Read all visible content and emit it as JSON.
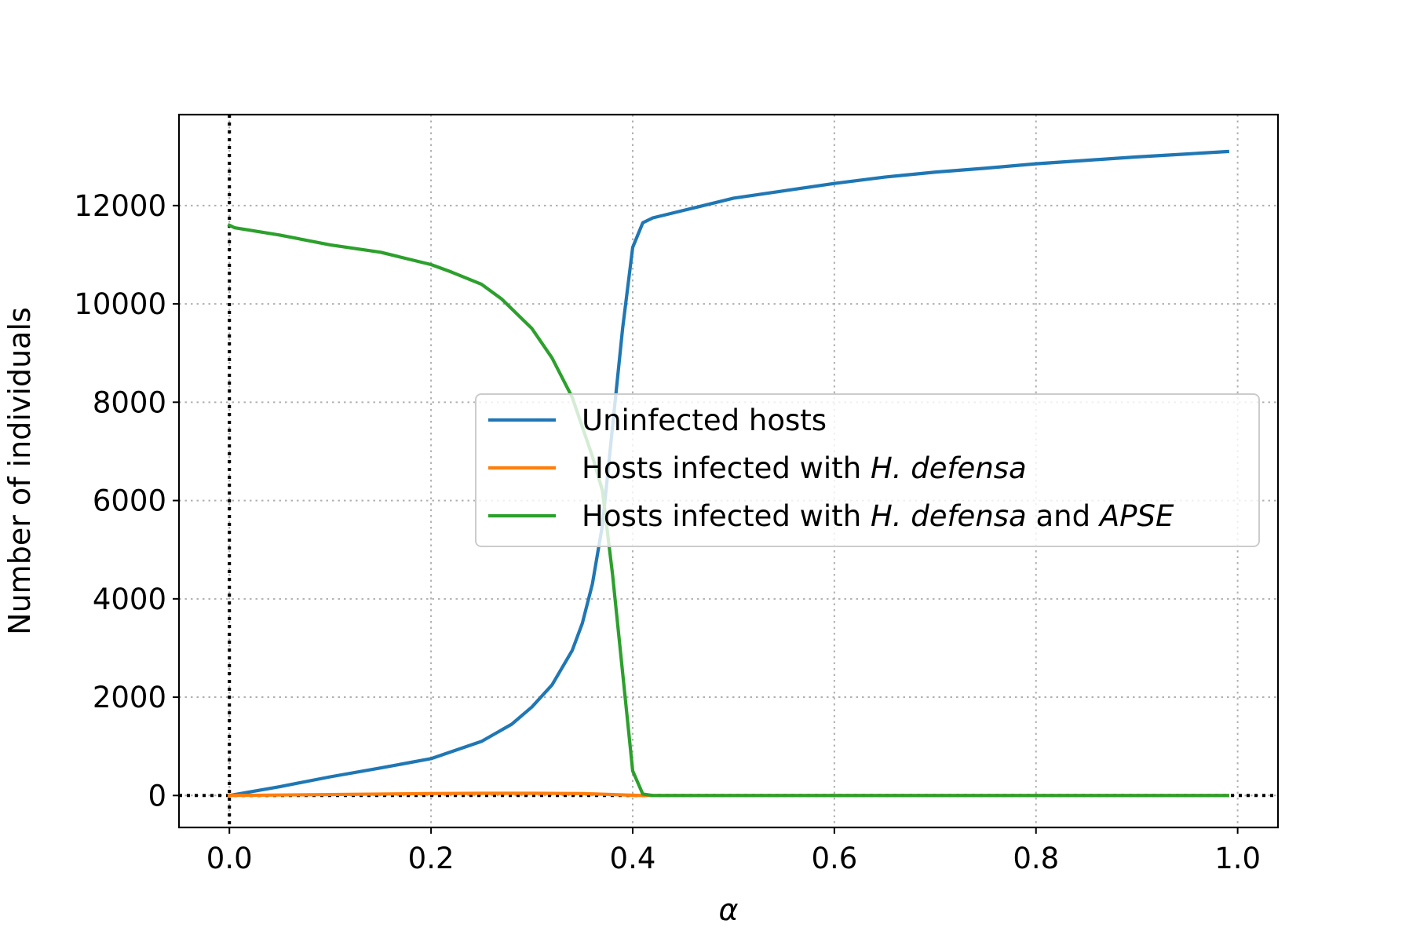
{
  "chart_data": {
    "type": "line",
    "xlabel": "α",
    "ylabel": "Number of individuals",
    "xlim": [
      -0.05,
      1.04
    ],
    "ylim": [
      -650,
      13850
    ],
    "x_ticks": [
      0.0,
      0.2,
      0.4,
      0.6,
      0.8,
      1.0
    ],
    "x_tick_labels": [
      "0.0",
      "0.2",
      "0.4",
      "0.6",
      "0.8",
      "1.0"
    ],
    "y_ticks": [
      0,
      2000,
      4000,
      6000,
      8000,
      10000,
      12000
    ],
    "y_tick_labels": [
      "0",
      "2000",
      "4000",
      "6000",
      "8000",
      "10000",
      "12000"
    ],
    "grid": true,
    "reference_lines": {
      "x0_dotted": true,
      "y0_dotted": true
    },
    "legend_position": "center-right",
    "legend": [
      {
        "parts": [
          {
            "text": "Uninfected hosts",
            "italic": false
          }
        ]
      },
      {
        "parts": [
          {
            "text": "Hosts infected with ",
            "italic": false
          },
          {
            "text": "H. defensa",
            "italic": true
          }
        ]
      },
      {
        "parts": [
          {
            "text": "Hosts infected with ",
            "italic": false
          },
          {
            "text": "H. defensa",
            "italic": true
          },
          {
            "text": " and ",
            "italic": false
          },
          {
            "text": "APSE",
            "italic": true
          }
        ]
      }
    ],
    "series": [
      {
        "name": "Uninfected hosts",
        "color": "#1f77b4",
        "x": [
          0.0,
          0.05,
          0.1,
          0.15,
          0.2,
          0.25,
          0.28,
          0.3,
          0.32,
          0.34,
          0.35,
          0.36,
          0.37,
          0.38,
          0.39,
          0.4,
          0.41,
          0.42,
          0.45,
          0.5,
          0.55,
          0.6,
          0.65,
          0.7,
          0.75,
          0.8,
          0.85,
          0.9,
          0.95,
          0.99
        ],
        "y": [
          0,
          180,
          380,
          560,
          750,
          1100,
          1450,
          1800,
          2250,
          2950,
          3500,
          4300,
          5500,
          7500,
          9500,
          11150,
          11650,
          11750,
          11900,
          12150,
          12300,
          12450,
          12580,
          12680,
          12760,
          12850,
          12920,
          12990,
          13050,
          13100
        ]
      },
      {
        "name": "Hosts infected with H. defensa",
        "color": "#ff7f0e",
        "x": [
          0.0,
          0.1,
          0.2,
          0.25,
          0.3,
          0.35,
          0.38,
          0.4,
          0.41,
          0.5,
          0.6,
          0.7,
          0.8,
          0.9,
          0.99
        ],
        "y": [
          0,
          20,
          40,
          45,
          45,
          40,
          20,
          5,
          0,
          0,
          0,
          0,
          0,
          0,
          0
        ]
      },
      {
        "name": "Hosts infected with H. defensa and APSE",
        "color": "#2ca02c",
        "x": [
          0.0,
          0.005,
          0.05,
          0.1,
          0.15,
          0.2,
          0.22,
          0.25,
          0.27,
          0.3,
          0.32,
          0.34,
          0.35,
          0.36,
          0.37,
          0.38,
          0.39,
          0.4,
          0.41,
          0.42,
          0.5,
          0.6,
          0.7,
          0.8,
          0.9,
          0.99
        ],
        "y": [
          11600,
          11550,
          11400,
          11200,
          11050,
          10800,
          10650,
          10400,
          10100,
          9500,
          8900,
          8100,
          7500,
          6900,
          6200,
          4500,
          2500,
          500,
          30,
          0,
          0,
          0,
          0,
          0,
          0,
          0
        ]
      }
    ]
  }
}
